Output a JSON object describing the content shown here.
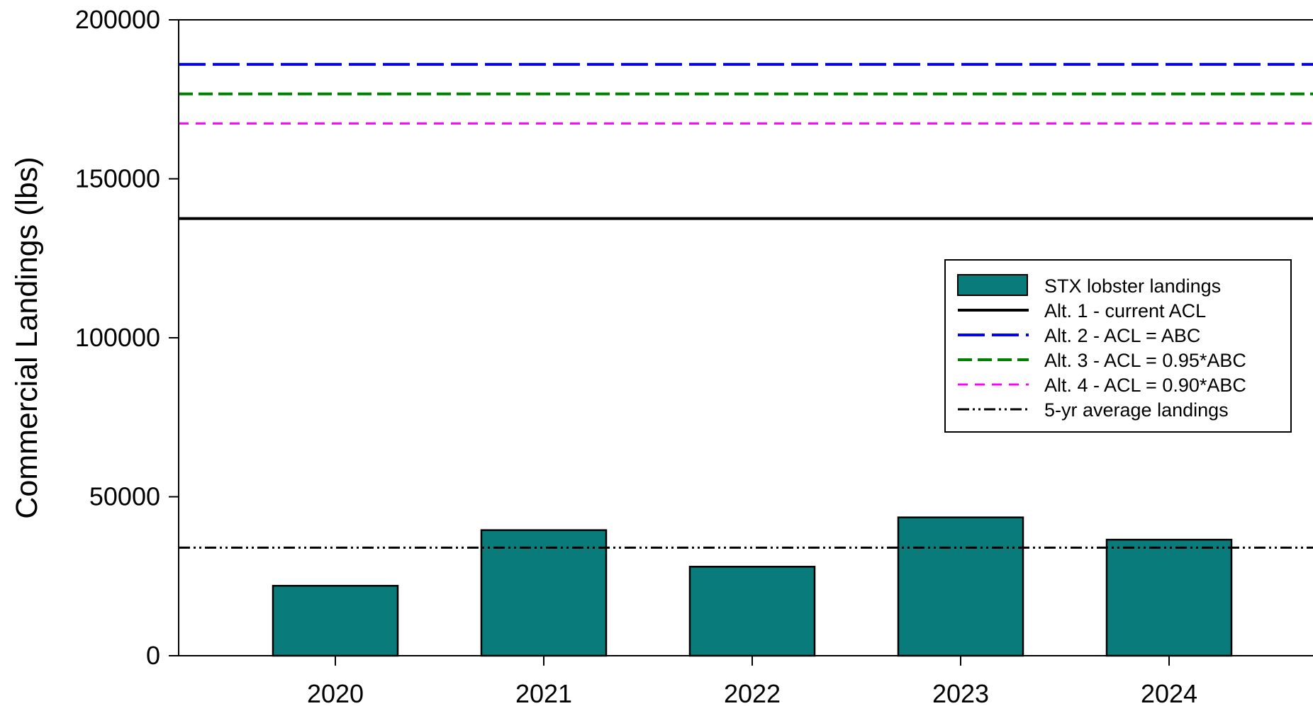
{
  "chart_data": {
    "type": "bar",
    "title": "",
    "xlabel": "",
    "ylabel": "Commercial Landings (lbs)",
    "ylim": [
      0,
      200000
    ],
    "yticks": [
      0,
      50000,
      100000,
      150000,
      200000
    ],
    "grid": false,
    "legend_position": "right",
    "categories": [
      "2020",
      "2021",
      "2022",
      "2023",
      "2024"
    ],
    "series": [
      {
        "name": "STX lobster landings",
        "type": "bar",
        "color": "#0a7b7b",
        "values": [
          22000,
          39500,
          28000,
          43500,
          36500
        ]
      }
    ],
    "reference_lines": [
      {
        "name": "Alt. 1 - current ACL",
        "value": 137500,
        "color": "#000000",
        "style": "solid"
      },
      {
        "name": "Alt. 2 - ACL = ABC",
        "value": 186000,
        "color": "#0000ff",
        "style": "long-dash"
      },
      {
        "name": "Alt. 3 - ACL = 0.95*ABC",
        "value": 176700,
        "color": "#008000",
        "style": "dash"
      },
      {
        "name": "Alt. 4 - ACL = 0.90*ABC",
        "value": 167400,
        "color": "#ff00ff",
        "style": "short-dash"
      },
      {
        "name": "5-yr average landings",
        "value": 34000,
        "color": "#000000",
        "style": "dash-dot-dot"
      }
    ]
  }
}
